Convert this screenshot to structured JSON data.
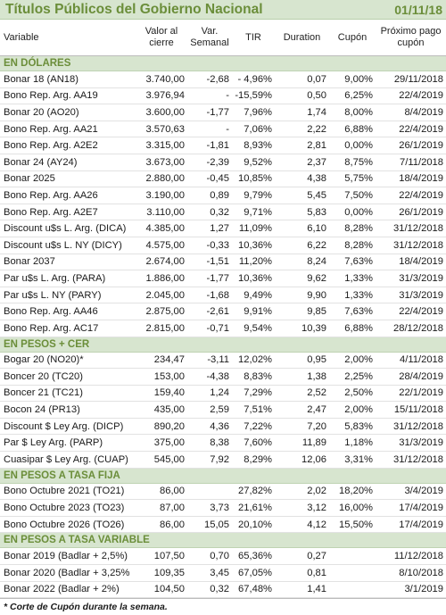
{
  "title": "Títulos Públicos del Gobierno Nacional",
  "date": "01/11/18",
  "columns": [
    "Variable",
    "Valor al cierre",
    "Var. Semanal",
    "TIR",
    "Duration",
    "Cupón",
    "Próximo pago cupón"
  ],
  "sections": [
    {
      "name": "EN DÓLARES",
      "rows": [
        [
          "Bonar 18 (AN18)",
          "3.740,00",
          "-2,68",
          "-  4,96%",
          "0,07",
          "9,00%",
          "29/11/2018"
        ],
        [
          "Bono Rep. Arg. AA19",
          "3.976,94",
          "-",
          "-15,59%",
          "0,50",
          "6,25%",
          "22/4/2019"
        ],
        [
          "Bonar 20 (AO20)",
          "3.600,00",
          "-1,77",
          "7,96%",
          "1,74",
          "8,00%",
          "8/4/2019"
        ],
        [
          "Bono Rep. Arg. AA21",
          "3.570,63",
          "-",
          "7,06%",
          "2,22",
          "6,88%",
          "22/4/2019"
        ],
        [
          "Bono Rep. Arg. A2E2",
          "3.315,00",
          "-1,81",
          "8,93%",
          "2,81",
          "0,00%",
          "26/1/2019"
        ],
        [
          "Bonar 24 (AY24)",
          "3.673,00",
          "-2,39",
          "9,52%",
          "2,37",
          "8,75%",
          "7/11/2018"
        ],
        [
          "Bonar 2025",
          "2.880,00",
          "-0,45",
          "10,85%",
          "4,38",
          "5,75%",
          "18/4/2019"
        ],
        [
          "Bono Rep. Arg. AA26",
          "3.190,00",
          "0,89",
          "9,79%",
          "5,45",
          "7,50%",
          "22/4/2019"
        ],
        [
          "Bono Rep. Arg. A2E7",
          "3.110,00",
          "0,32",
          "9,71%",
          "5,83",
          "0,00%",
          "26/1/2019"
        ],
        [
          "Discount u$s L. Arg. (DICA)",
          "4.385,00",
          "1,27",
          "11,09%",
          "6,10",
          "8,28%",
          "31/12/2018"
        ],
        [
          "Discount u$s L. NY (DICY)",
          "4.575,00",
          "-0,33",
          "10,36%",
          "6,22",
          "8,28%",
          "31/12/2018"
        ],
        [
          "Bonar 2037",
          "2.674,00",
          "-1,51",
          "11,20%",
          "8,24",
          "7,63%",
          "18/4/2019"
        ],
        [
          "Par u$s L. Arg. (PARA)",
          "1.886,00",
          "-1,77",
          "10,36%",
          "9,62",
          "1,33%",
          "31/3/2019"
        ],
        [
          "Par u$s L. NY (PARY)",
          "2.045,00",
          "-1,68",
          "9,49%",
          "9,90",
          "1,33%",
          "31/3/2019"
        ],
        [
          "Bono Rep. Arg. AA46",
          "2.875,00",
          "-2,61",
          "9,91%",
          "9,85",
          "7,63%",
          "22/4/2019"
        ],
        [
          "Bono Rep. Arg. AC17",
          "2.815,00",
          "-0,71",
          "9,54%",
          "10,39",
          "6,88%",
          "28/12/2018"
        ]
      ]
    },
    {
      "name": "EN PESOS + CER",
      "rows": [
        [
          "Bogar 20 (NO20)*",
          "234,47",
          "-3,11",
          "12,02%",
          "0,95",
          "2,00%",
          "4/11/2018"
        ],
        [
          "Boncer 20 (TC20)",
          "153,00",
          "-4,38",
          "8,83%",
          "1,38",
          "2,25%",
          "28/4/2019"
        ],
        [
          "Boncer 21 (TC21)",
          "159,40",
          "1,24",
          "7,29%",
          "2,52",
          "2,50%",
          "22/1/2019"
        ],
        [
          "Bocon 24 (PR13)",
          "435,00",
          "2,59",
          "7,51%",
          "2,47",
          "2,00%",
          "15/11/2018"
        ],
        [
          "Discount $ Ley Arg. (DICP)",
          "890,20",
          "4,36",
          "7,22%",
          "7,20",
          "5,83%",
          "31/12/2018"
        ],
        [
          "Par $ Ley Arg. (PARP)",
          "375,00",
          "8,38",
          "7,60%",
          "11,89",
          "1,18%",
          "31/3/2019"
        ],
        [
          "Cuasipar $ Ley Arg. (CUAP)",
          "545,00",
          "7,92",
          "8,29%",
          "12,06",
          "3,31%",
          "31/12/2018"
        ]
      ]
    },
    {
      "name": "EN PESOS A TASA FIJA",
      "rows": [
        [
          "Bono Octubre 2021 (TO21)",
          "86,00",
          "",
          "27,82%",
          "2,02",
          "18,20%",
          "3/4/2019"
        ],
        [
          "Bono Octubre 2023 (TO23)",
          "87,00",
          "3,73",
          "21,61%",
          "3,12",
          "16,00%",
          "17/4/2019"
        ],
        [
          "Bono Octubre 2026 (TO26)",
          "86,00",
          "15,05",
          "20,10%",
          "4,12",
          "15,50%",
          "17/4/2019"
        ]
      ]
    },
    {
      "name": "EN PESOS A TASA VARIABLE",
      "rows": [
        [
          "Bonar 2019 (Badlar + 2,5%)",
          "107,50",
          "0,70",
          "65,36%",
          "0,27",
          "",
          "11/12/2018"
        ],
        [
          "Bonar 2020 (Badlar + 3,25%",
          "109,35",
          "3,45",
          "67,05%",
          "0,81",
          "",
          "8/10/2018"
        ],
        [
          "Bonar 2022 (Badlar + 2%)",
          "104,50",
          "0,32",
          "67,48%",
          "1,41",
          "",
          "3/1/2019"
        ]
      ]
    }
  ],
  "footnote": "* Corte de Cupón durante la semana."
}
